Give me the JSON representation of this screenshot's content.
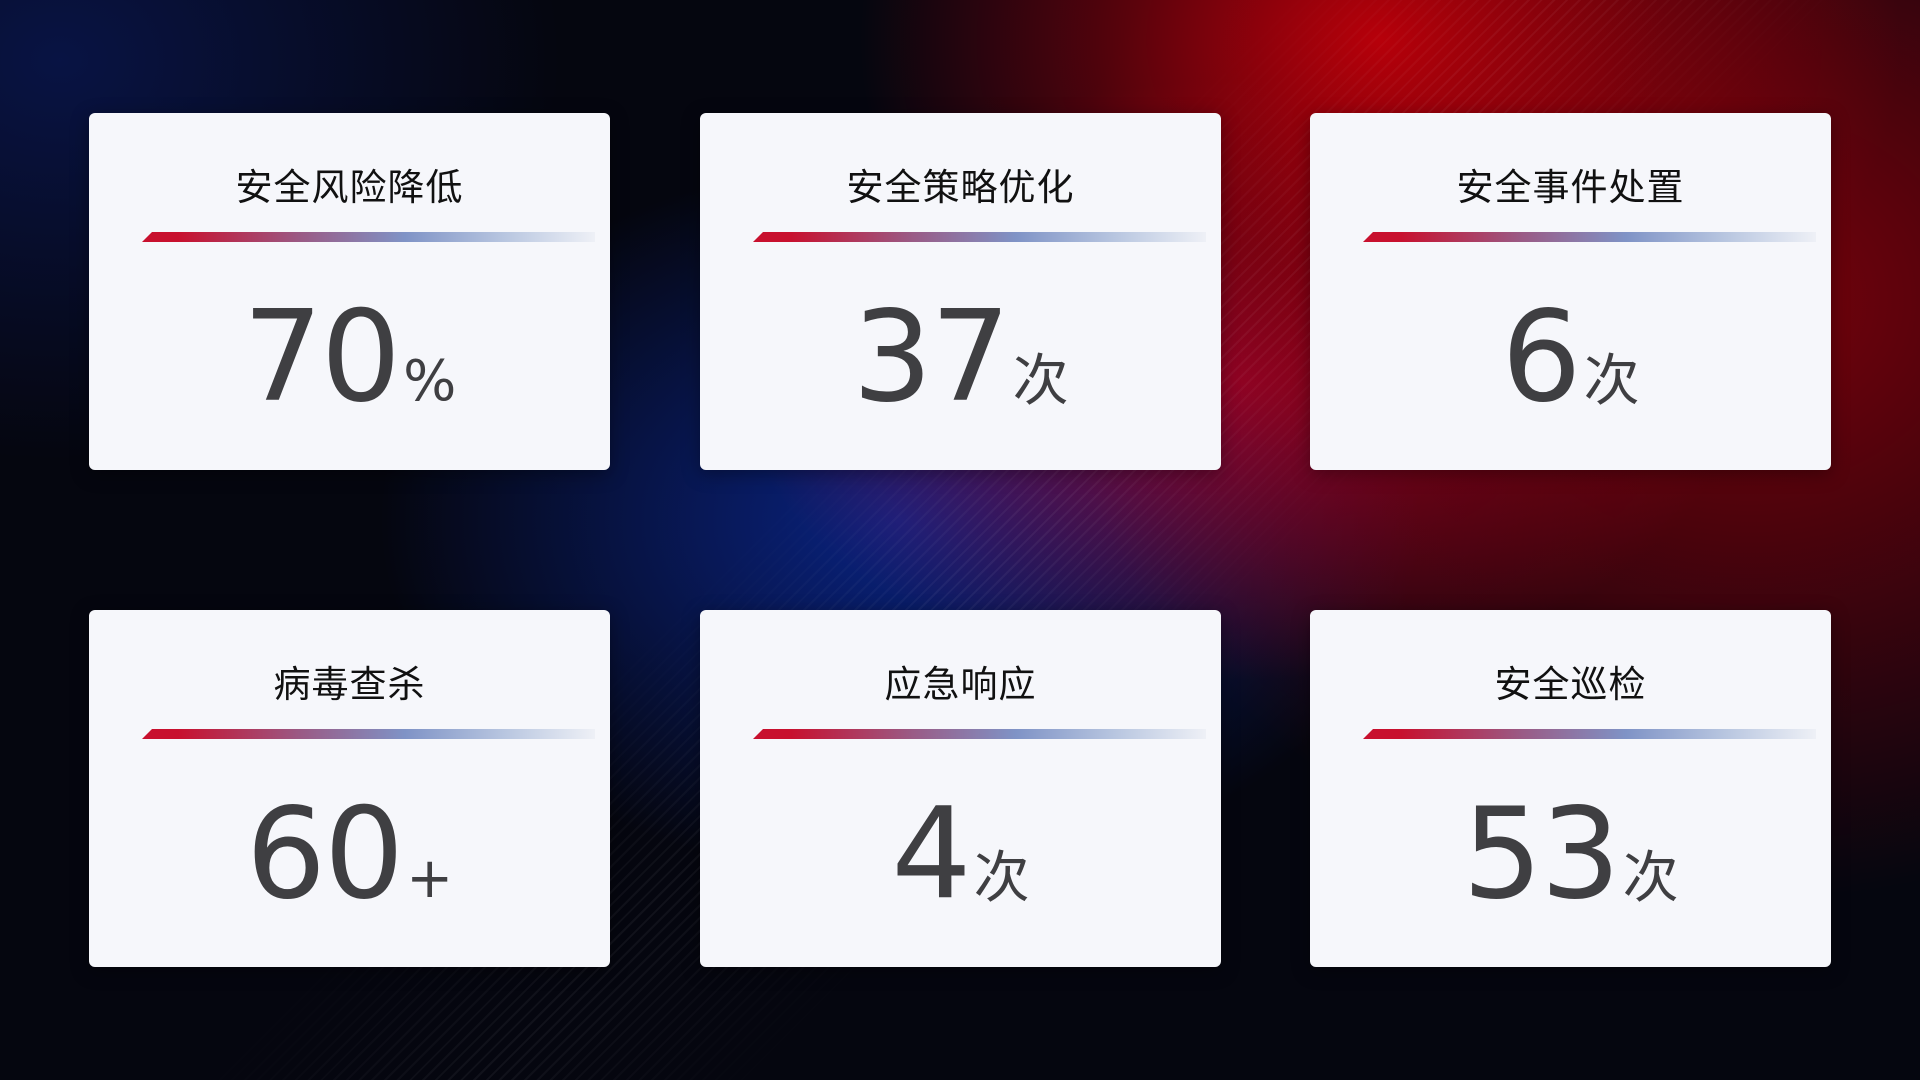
{
  "cards": [
    {
      "title": "安全风险降低",
      "value": "70",
      "unit": "%"
    },
    {
      "title": "安全策略优化",
      "value": "37",
      "unit": "次"
    },
    {
      "title": "安全事件处置",
      "value": "6",
      "unit": "次"
    },
    {
      "title": "病毒查杀",
      "value": "60",
      "unit": "+"
    },
    {
      "title": "应急响应",
      "value": "4",
      "unit": "次"
    },
    {
      "title": "安全巡检",
      "value": "53",
      "unit": "次"
    }
  ],
  "colors": {
    "accent_red": "#c8102e",
    "accent_blue": "#7f93c6",
    "card_bg": "#f6f7fb",
    "value_text": "#3f3f42"
  }
}
